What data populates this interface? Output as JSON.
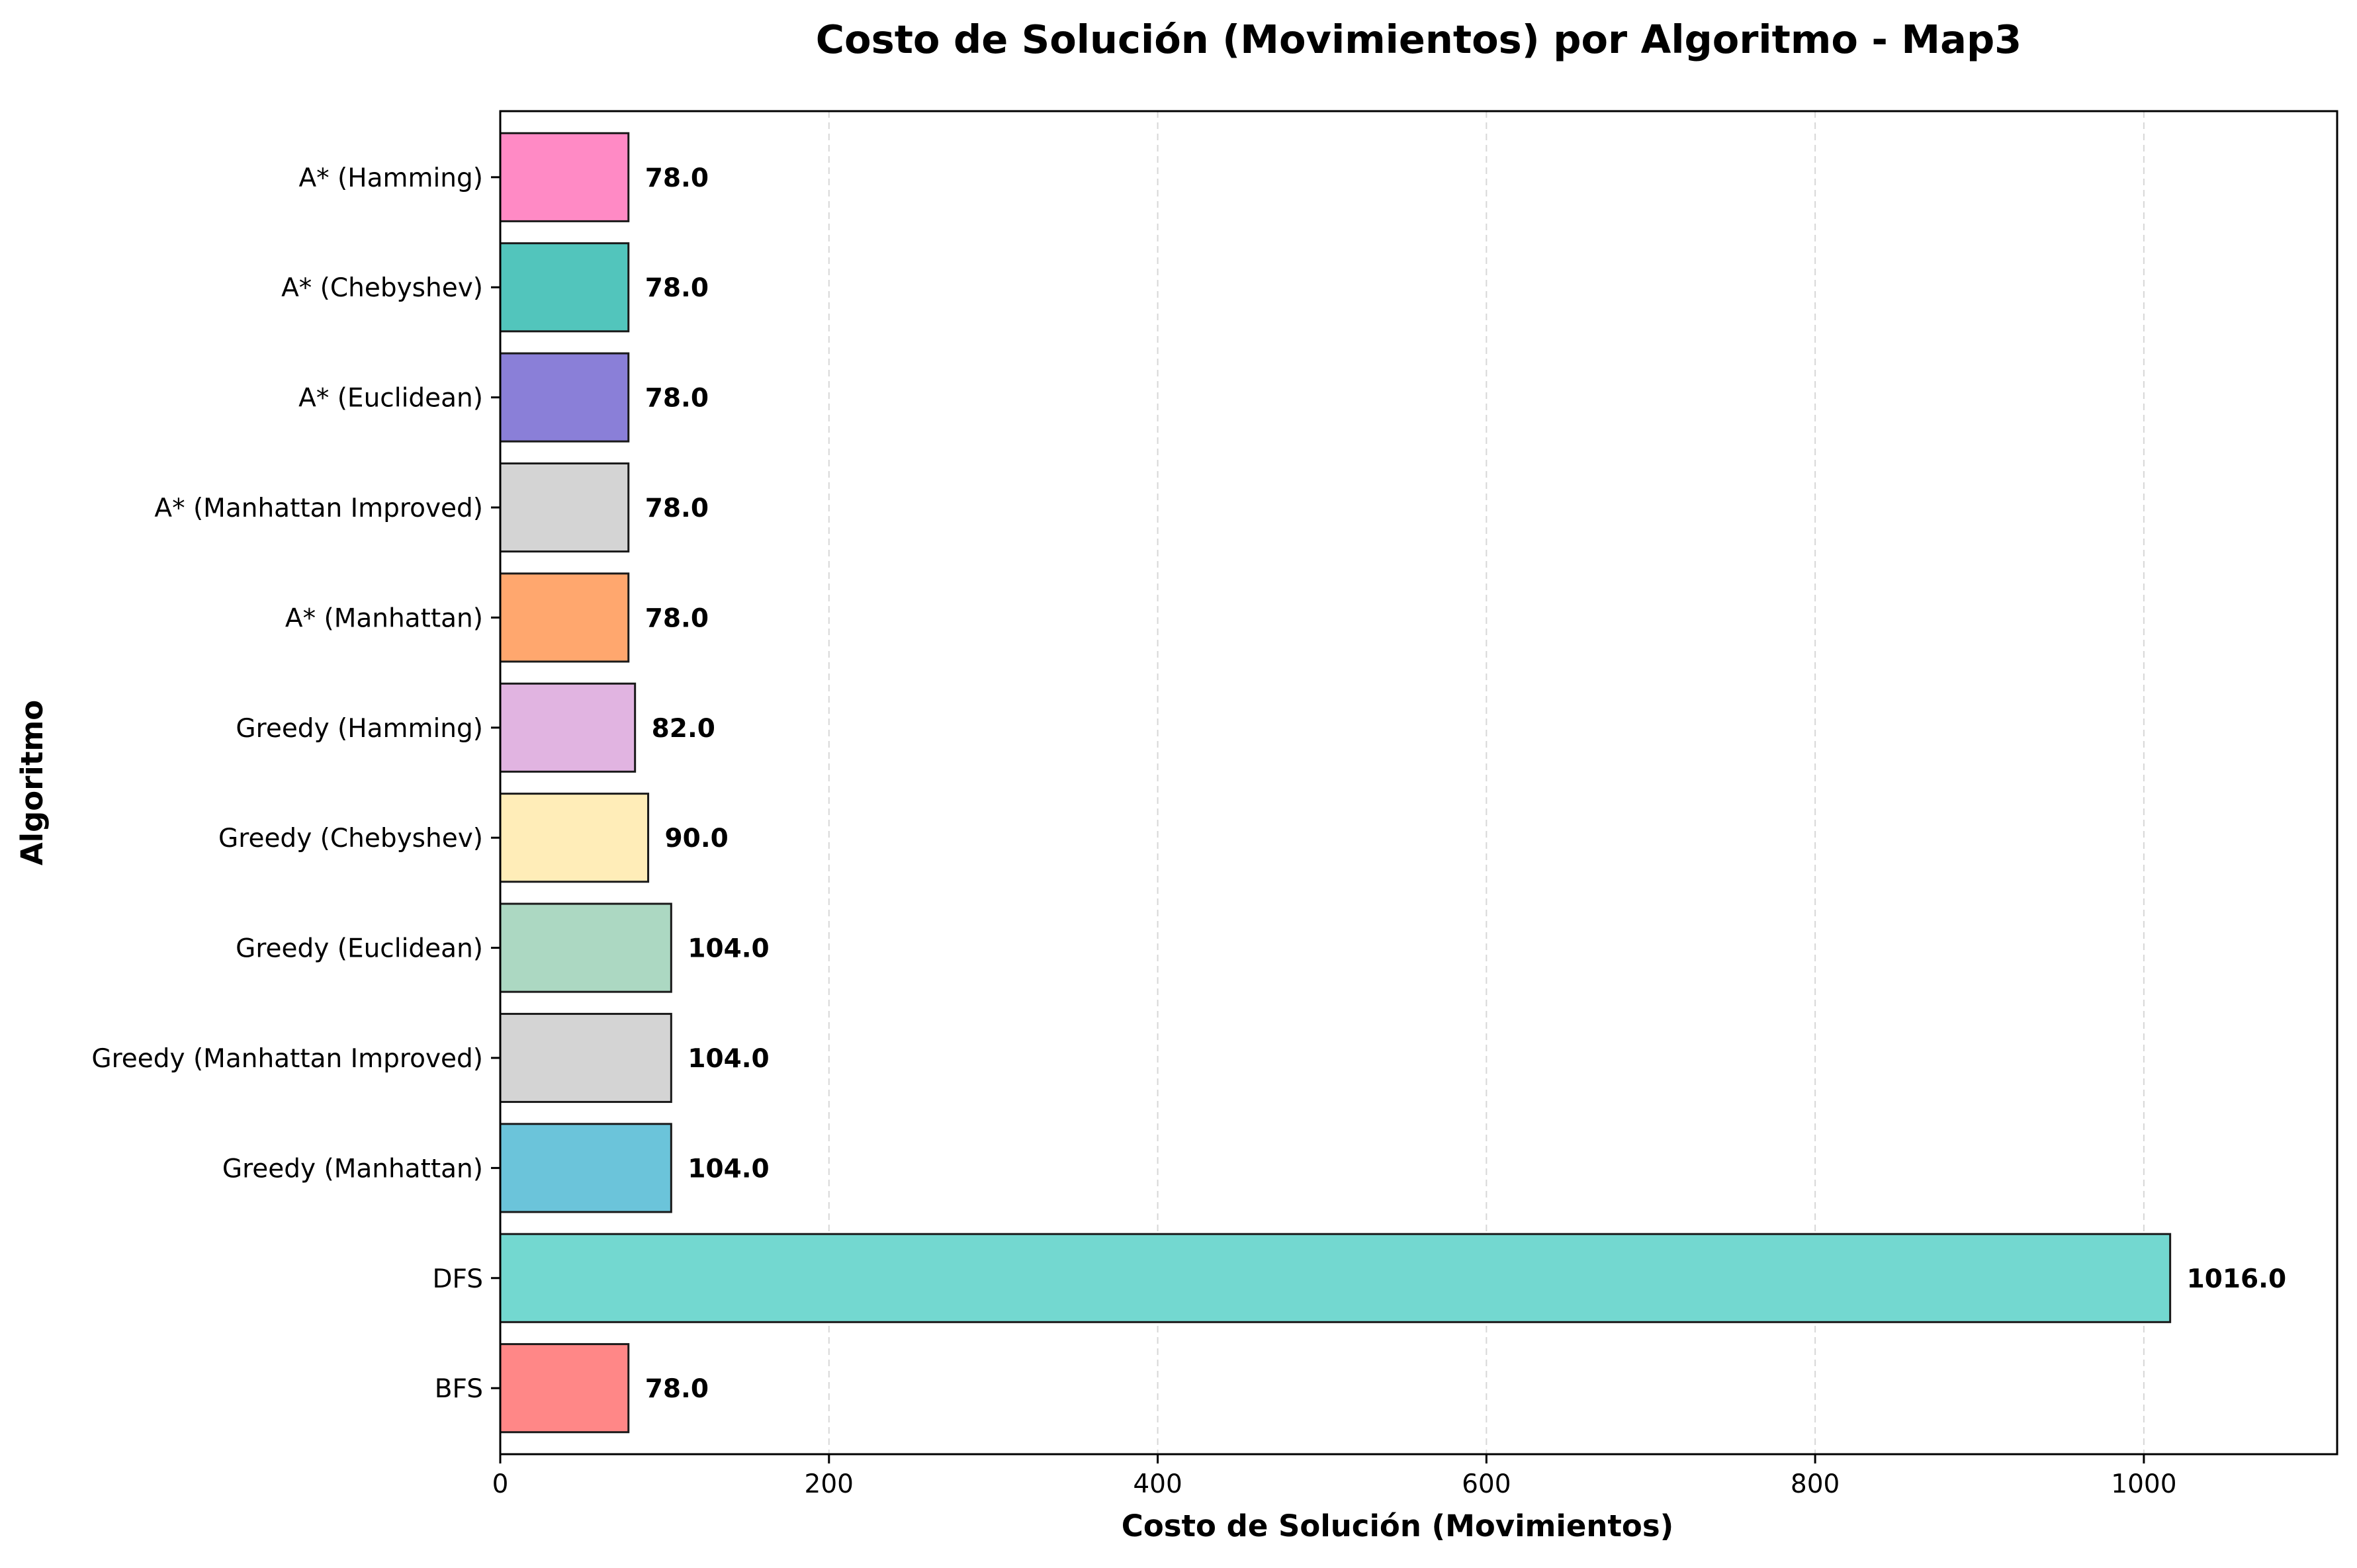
{
  "chart_data": {
    "type": "bar",
    "orientation": "horizontal",
    "title": "Costo de Solución (Movimientos) por Algoritmo - Map3",
    "xlabel": "Costo de Solución (Movimientos)",
    "ylabel": "Algoritmo",
    "xlim": [
      0,
      1117.6
    ],
    "xticks": [
      0,
      200,
      400,
      600,
      800,
      1000
    ],
    "xtick_labels": [
      "0",
      "200",
      "400",
      "600",
      "800",
      "1000"
    ],
    "grid": "x, dashed",
    "legend": "none",
    "categories": [
      "BFS",
      "DFS",
      "Greedy (Manhattan)",
      "Greedy (Manhattan Improved)",
      "Greedy (Euclidean)",
      "Greedy (Chebyshev)",
      "Greedy (Hamming)",
      "A* (Manhattan)",
      "A* (Manhattan Improved)",
      "A* (Euclidean)",
      "A* (Chebyshev)",
      "A* (Hamming)"
    ],
    "values": [
      78.0,
      1016.0,
      104.0,
      104.0,
      104.0,
      90.0,
      82.0,
      78.0,
      78.0,
      78.0,
      78.0,
      78.0
    ],
    "data_labels": [
      "78.0",
      "1016.0",
      "104.0",
      "104.0",
      "104.0",
      "90.0",
      "82.0",
      "78.0",
      "78.0",
      "78.0",
      "78.0",
      "78.0"
    ],
    "colors": [
      "#FF8787",
      "#73D8D0",
      "#6BC4DA",
      "#D4D4D4",
      "#ACD8C2",
      "#FFEDB8",
      "#E1B4E1",
      "#FFA76E",
      "#D4D4D4",
      "#8A7FD8",
      "#52C5BC",
      "#FF8AC5"
    ],
    "edge_color": "#1a1a1a"
  }
}
